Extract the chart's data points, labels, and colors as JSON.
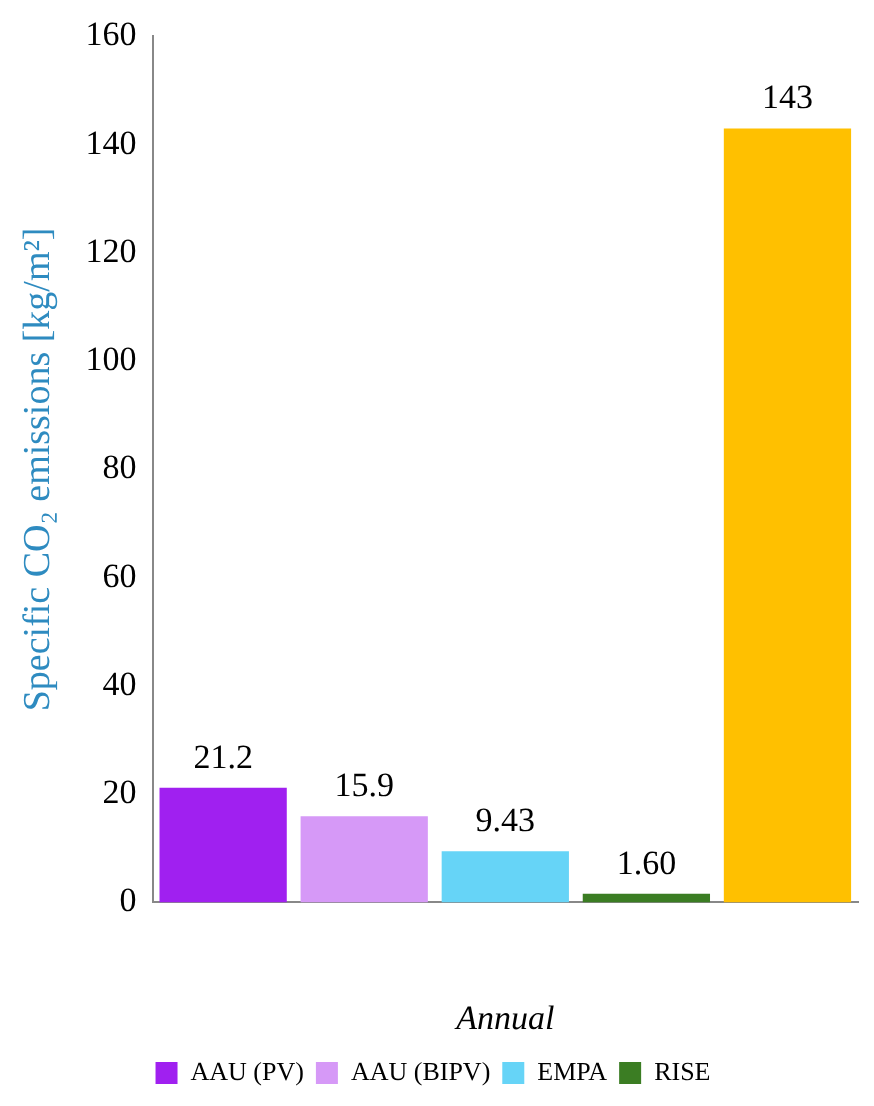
{
  "chart_data": {
    "type": "bar",
    "categories": [
      null,
      null,
      null,
      null,
      null
    ],
    "xlabel": "Annual",
    "ylabel": "Specific CO₂ emissions [kg/m²]",
    "stacked": true,
    "series": [
      {
        "name": "AAU (PV)",
        "color": "#a020f0",
        "values": [
          21.2,
          null,
          null,
          null,
          null
        ],
        "value_labels": [
          "21.2",
          null,
          null,
          null,
          null
        ]
      },
      {
        "name": "AAU (BIPV)",
        "color": "#d699f7",
        "values": [
          null,
          15.9,
          null,
          null,
          null
        ],
        "value_labels": [
          null,
          "15.9",
          null,
          null,
          null
        ]
      },
      {
        "name": "EMPA",
        "color": "#66d4f7",
        "values": [
          null,
          null,
          9.43,
          null,
          null
        ],
        "value_labels": [
          null,
          null,
          "9.43",
          null,
          null
        ]
      },
      {
        "name": "RISE",
        "color": "#3b7d23",
        "values": [
          null,
          null,
          null,
          1.6,
          null
        ],
        "value_labels": [
          null,
          null,
          null,
          "1.60",
          null
        ]
      },
      {
        "color": "#ffc000",
        "values": [
          null,
          null,
          null,
          null,
          143
        ],
        "value_labels": [
          null,
          null,
          null,
          null,
          "143"
        ]
      }
    ],
    "ylim": [
      0,
      160
    ],
    "yticks": [
      0,
      20,
      40,
      60,
      80,
      100,
      120,
      140,
      160
    ],
    "grid": false,
    "legend": "bottom"
  }
}
